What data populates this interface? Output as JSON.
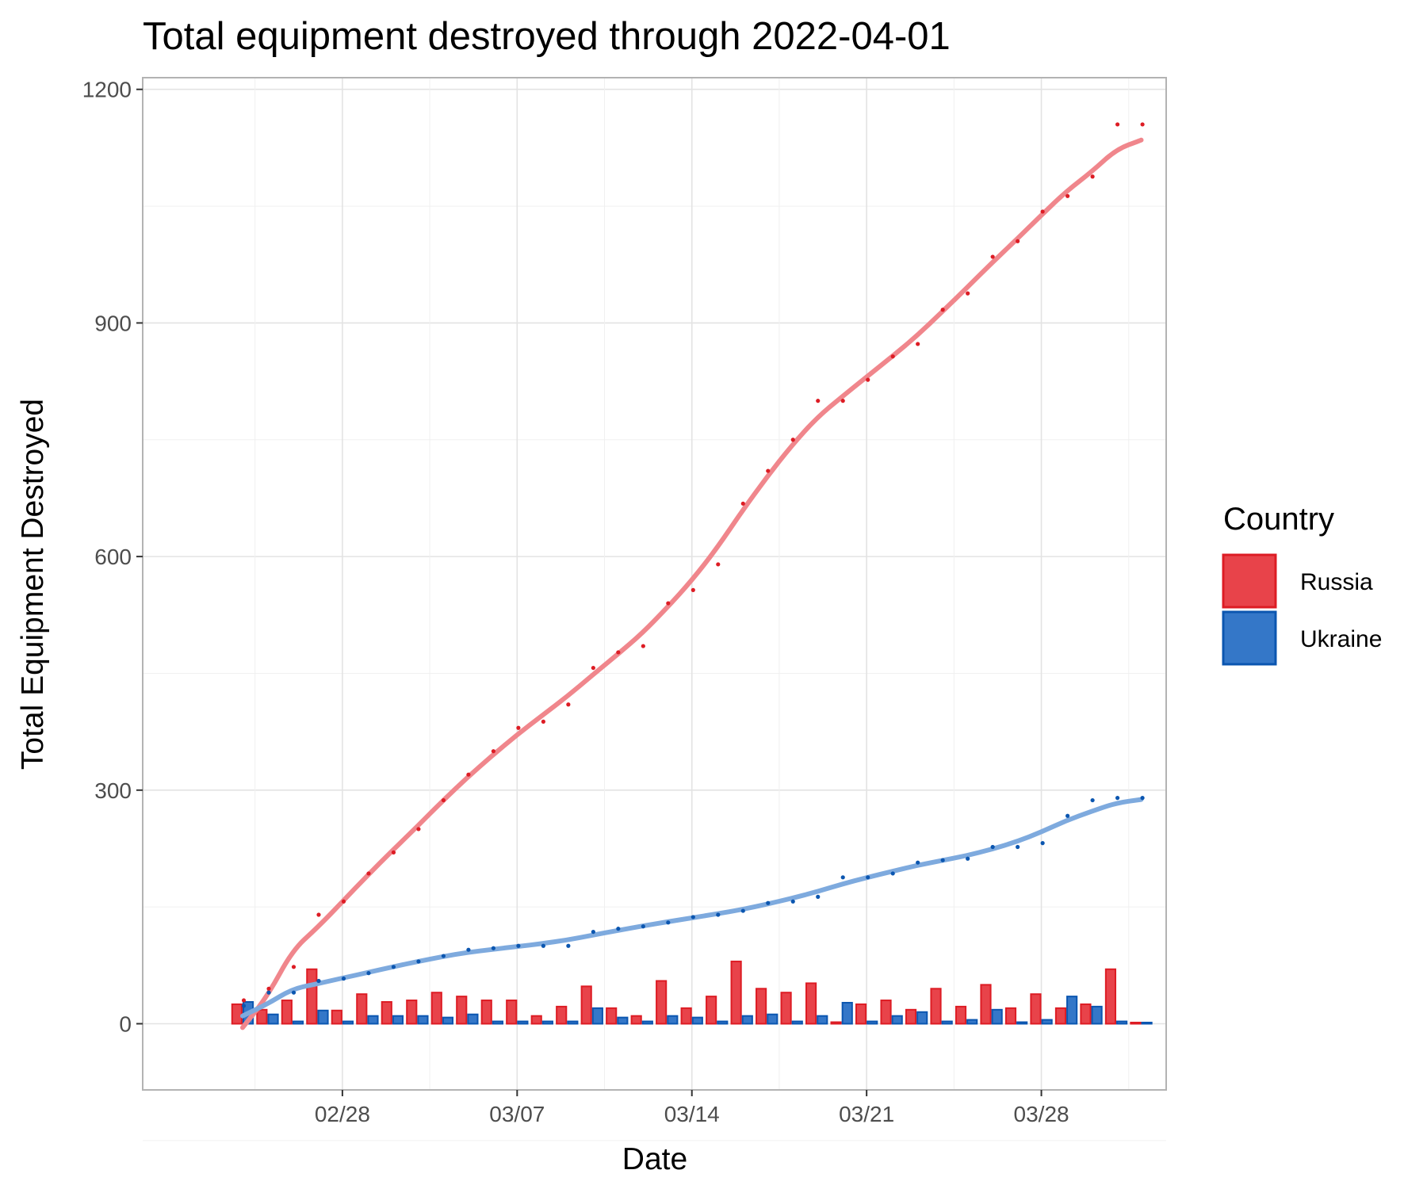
{
  "chart_data": {
    "type": "bar+line+scatter",
    "title": "Total equipment destroyed through 2022-04-01",
    "xlabel": "Date",
    "ylabel": "Total Equipment Destroyed",
    "x_ticks": [
      "02/28",
      "03/07",
      "03/14",
      "03/21",
      "03/28"
    ],
    "y_ticks": [
      0,
      300,
      600,
      900,
      1200
    ],
    "ylim": [
      -85,
      1215
    ],
    "xlim": [
      "2022-02-20",
      "2022-04-02"
    ],
    "grid": true,
    "legend": {
      "title": "Country",
      "placement": "right"
    },
    "dates": [
      "2022-02-24",
      "2022-02-25",
      "2022-02-26",
      "2022-02-27",
      "2022-02-28",
      "2022-03-01",
      "2022-03-02",
      "2022-03-03",
      "2022-03-04",
      "2022-03-05",
      "2022-03-06",
      "2022-03-07",
      "2022-03-08",
      "2022-03-09",
      "2022-03-10",
      "2022-03-11",
      "2022-03-12",
      "2022-03-13",
      "2022-03-14",
      "2022-03-15",
      "2022-03-16",
      "2022-03-17",
      "2022-03-18",
      "2022-03-19",
      "2022-03-20",
      "2022-03-21",
      "2022-03-22",
      "2022-03-23",
      "2022-03-24",
      "2022-03-25",
      "2022-03-26",
      "2022-03-27",
      "2022-03-28",
      "2022-03-29",
      "2022-03-30",
      "2022-03-31",
      "2022-04-01"
    ],
    "series": [
      {
        "name": "Russia",
        "color": "#e8434a",
        "edge_color": "#dd1c24",
        "smooth_color": "#f0868c",
        "daily": [
          25,
          18,
          30,
          70,
          17,
          38,
          28,
          30,
          40,
          35,
          30,
          30,
          10,
          22,
          48,
          20,
          10,
          55,
          20,
          35,
          80,
          45,
          40,
          52,
          2,
          25,
          30,
          18,
          45,
          22,
          50,
          20,
          38,
          20,
          25,
          70,
          0
        ],
        "cumulative": [
          30,
          45,
          73,
          140,
          157,
          193,
          220,
          250,
          287,
          320,
          350,
          380,
          388,
          410,
          457,
          477,
          485,
          540,
          557,
          590,
          668,
          710,
          750,
          800,
          800,
          827,
          857,
          873,
          917,
          938,
          985,
          1005,
          1043,
          1063,
          1088,
          1155,
          1155
        ],
        "smooth_start": -5,
        "smooth_end": 1135
      },
      {
        "name": "Ukraine",
        "color": "#3477c8",
        "edge_color": "#0b56b0",
        "smooth_color": "#7eaade",
        "daily": [
          28,
          12,
          3,
          17,
          3,
          10,
          10,
          10,
          8,
          12,
          3,
          3,
          3,
          3,
          20,
          8,
          3,
          10,
          8,
          3,
          10,
          12,
          3,
          10,
          27,
          3,
          10,
          15,
          3,
          5,
          18,
          2,
          5,
          35,
          22,
          3,
          0
        ],
        "cumulative": [
          23,
          40,
          40,
          55,
          58,
          65,
          73,
          80,
          87,
          95,
          97,
          100,
          100,
          100,
          118,
          122,
          125,
          130,
          137,
          140,
          145,
          155,
          157,
          163,
          188,
          188,
          193,
          207,
          210,
          212,
          227,
          227,
          232,
          267,
          287,
          290,
          290
        ],
        "smooth_start": 10,
        "smooth_end": 288
      }
    ]
  }
}
